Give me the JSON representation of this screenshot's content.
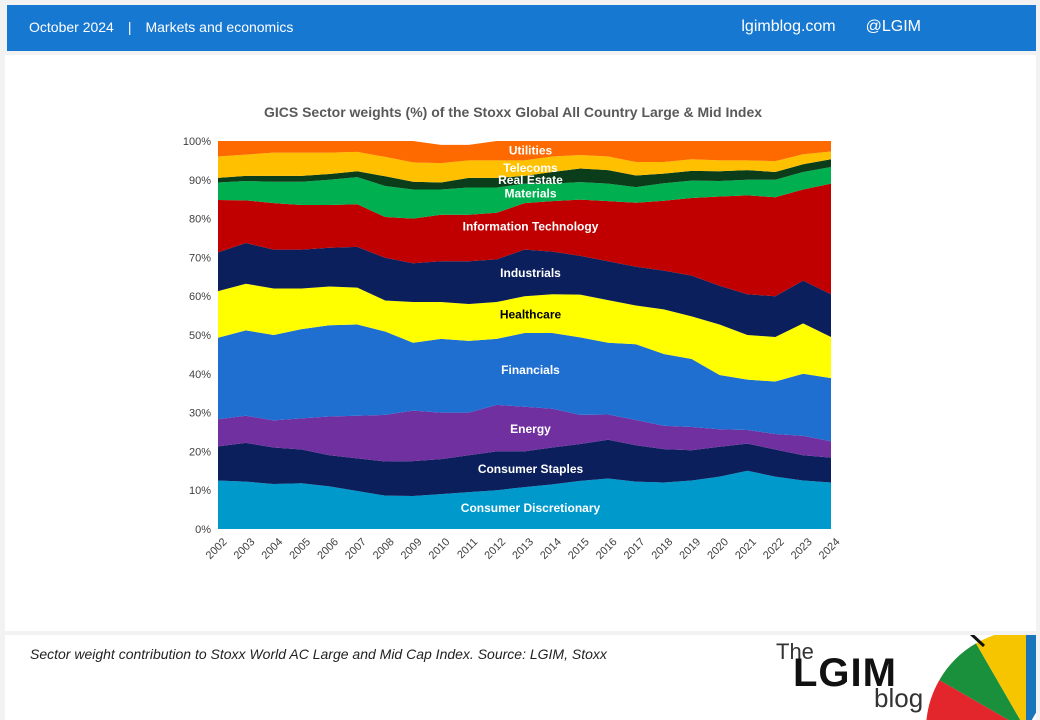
{
  "header": {
    "date": "October 2024",
    "separator": "|",
    "section": "Markets and economics",
    "site": "lgimblog.com",
    "handle": "@LGIM"
  },
  "footer": {
    "caption": "Sector weight  contribution to Stoxx World AC Large and Mid Cap Index. Source: LGIM, Stoxx",
    "logo_the": "The",
    "logo_lgim": "LGIM",
    "logo_blog": "blog"
  },
  "chart_data": {
    "type": "area",
    "stacked": true,
    "title": "GICS Sector weights (%) of the Stoxx Global All Country Large & Mid Index",
    "xlabel": "",
    "ylabel": "",
    "ylim": [
      0,
      100
    ],
    "x": [
      2002,
      2003,
      2004,
      2005,
      2006,
      2007,
      2008,
      2009,
      2010,
      2011,
      2012,
      2013,
      2014,
      2015,
      2016,
      2017,
      2018,
      2019,
      2020,
      2021,
      2022,
      2023,
      2024
    ],
    "x_tick_labels": [
      "2002",
      "2003",
      "2004",
      "2005",
      "2006",
      "2007",
      "2008",
      "2009",
      "2010",
      "2011",
      "2012",
      "2013",
      "2014",
      "2015",
      "2016",
      "2017",
      "2018",
      "2019",
      "2020",
      "2021",
      "2022",
      "2023",
      "2024"
    ],
    "y_tick_labels": [
      "0%",
      "10%",
      "20%",
      "30%",
      "40%",
      "50%",
      "60%",
      "70%",
      "80%",
      "90%",
      "100%"
    ],
    "y_ticks": [
      0,
      10,
      20,
      30,
      40,
      50,
      60,
      70,
      80,
      90,
      100
    ],
    "grid": false,
    "legend": "inline-labels",
    "series": [
      {
        "name": "Consumer Discretionary",
        "color": "#0099cc",
        "label_color": "#ffffff",
        "values": [
          12.5,
          12.2,
          11.6,
          11.8,
          11.0,
          9.8,
          8.6,
          8.5,
          9.0,
          9.5,
          10.0,
          10.8,
          11.5,
          12.4,
          13.0,
          12.2,
          12.0,
          12.5,
          13.5,
          15.0,
          13.5,
          12.5,
          12.0
        ]
      },
      {
        "name": "Consumer Staples",
        "color": "#0a1f5c",
        "label_color": "#ffffff",
        "values": [
          8.8,
          10.0,
          9.4,
          8.7,
          8.0,
          8.4,
          8.8,
          9.0,
          9.0,
          9.5,
          10.0,
          9.2,
          9.5,
          9.5,
          10.0,
          9.4,
          8.6,
          7.8,
          7.7,
          7.0,
          7.0,
          6.5,
          6.4
        ]
      },
      {
        "name": "Energy",
        "color": "#7030a0",
        "label_color": "#ffffff",
        "values": [
          7.0,
          7.0,
          7.0,
          8.0,
          10.0,
          11.0,
          12.0,
          13.0,
          12.0,
          11.0,
          12.0,
          11.5,
          10.0,
          7.5,
          6.5,
          6.5,
          6.0,
          6.0,
          4.5,
          3.5,
          4.0,
          5.0,
          4.2
        ]
      },
      {
        "name": "Financials",
        "color": "#1f6fd1",
        "label_color": "#ffffff",
        "values": [
          21.0,
          22.0,
          22.0,
          23.0,
          23.5,
          23.5,
          21.5,
          17.5,
          19.0,
          18.5,
          17.0,
          19.0,
          19.5,
          20.0,
          18.5,
          19.5,
          18.5,
          17.5,
          14.0,
          13.0,
          13.5,
          16.0,
          16.3
        ]
      },
      {
        "name": "Healthcare",
        "color": "#ffff00",
        "label_color": "#000000",
        "values": [
          12.0,
          12.0,
          12.0,
          10.5,
          10.0,
          9.5,
          8.0,
          10.5,
          9.5,
          9.5,
          9.5,
          9.5,
          10.0,
          11.0,
          11.0,
          10.0,
          11.5,
          11.0,
          13.0,
          11.5,
          11.5,
          13.0,
          10.6
        ]
      },
      {
        "name": "Industrials",
        "color": "#0a1f5c",
        "label_color": "#ffffff",
        "values": [
          10.0,
          10.5,
          10.0,
          10.0,
          10.0,
          10.5,
          11.0,
          10.0,
          10.5,
          11.0,
          11.0,
          12.0,
          11.0,
          10.0,
          10.0,
          10.0,
          10.0,
          10.5,
          10.0,
          10.5,
          10.5,
          11.0,
          11.0
        ]
      },
      {
        "name": "Information Technology",
        "color": "#c00000",
        "label_color": "#ffffff",
        "values": [
          13.5,
          11.0,
          12.0,
          11.5,
          11.0,
          11.0,
          10.5,
          11.5,
          12.0,
          12.0,
          12.0,
          12.0,
          13.0,
          14.5,
          15.5,
          16.5,
          18.0,
          20.0,
          23.0,
          25.5,
          25.5,
          23.5,
          28.5
        ]
      },
      {
        "name": "Materials",
        "color": "#00b050",
        "label_color": "#ffffff",
        "values": [
          4.5,
          5.0,
          5.5,
          6.0,
          6.5,
          7.0,
          8.0,
          7.5,
          6.5,
          7.0,
          6.5,
          5.0,
          4.5,
          4.5,
          4.5,
          4.0,
          4.5,
          4.5,
          4.0,
          4.0,
          4.5,
          4.5,
          4.3
        ]
      },
      {
        "name": "Real Estate",
        "color": "#0b3d1a",
        "label_color": "#ffffff",
        "values": [
          1.2,
          1.3,
          1.5,
          1.5,
          1.5,
          1.5,
          2.5,
          2.0,
          1.8,
          2.5,
          2.5,
          2.0,
          3.0,
          3.5,
          3.5,
          3.0,
          2.5,
          2.5,
          2.5,
          2.5,
          2.0,
          2.0,
          2.0
        ]
      },
      {
        "name": "Telecoms",
        "color": "#ffc000",
        "label_color": "#ffffff",
        "values": [
          5.5,
          5.5,
          6.0,
          6.0,
          5.5,
          5.0,
          5.0,
          5.0,
          5.0,
          4.5,
          4.5,
          4.0,
          4.0,
          3.5,
          3.5,
          3.5,
          3.0,
          3.0,
          2.8,
          2.5,
          2.8,
          2.6,
          2.0
        ]
      },
      {
        "name": "Utilities",
        "color": "#ff6a00",
        "label_color": "#ffffff",
        "values": [
          4.0,
          3.5,
          3.0,
          3.0,
          3.0,
          2.8,
          4.1,
          5.5,
          4.7,
          4.0,
          5.0,
          5.0,
          4.0,
          3.6,
          4.0,
          5.4,
          5.4,
          4.7,
          5.0,
          5.0,
          5.2,
          3.4,
          2.7
        ]
      }
    ]
  }
}
